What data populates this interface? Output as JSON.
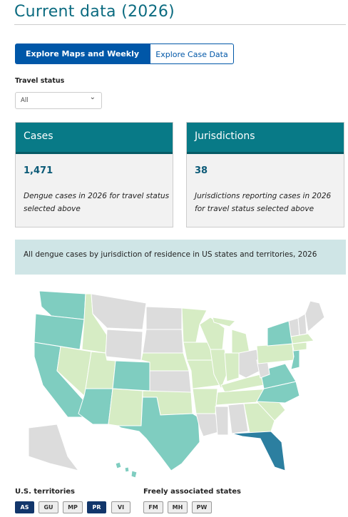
{
  "header": {
    "title": "Current data (2026)"
  },
  "tabs": [
    "Explore Maps and Weekly Data",
    "Explore Case Data"
  ],
  "filter": {
    "label": "Travel status",
    "value": "All"
  },
  "cards": [
    {
      "title": "Cases",
      "value": "1,471",
      "description": "Dengue cases in 2026 for travel status selected above"
    },
    {
      "title": "Jurisdictions",
      "value": "38",
      "description": "Jurisdictions reporting cases in 2026 for travel status selected above"
    }
  ],
  "map": {
    "caption": "All dengue cases by jurisdiction of residence in US states and territories, 2026"
  },
  "territories": {
    "label": "U.S. territories",
    "buttons": [
      "AS",
      "GU",
      "MP",
      "PR",
      "VI"
    ]
  },
  "freely_associated": {
    "label": "Freely associated states",
    "buttons": [
      "FM",
      "MH",
      "PW"
    ]
  }
}
